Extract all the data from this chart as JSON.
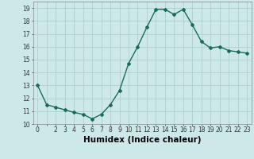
{
  "x": [
    0,
    1,
    2,
    3,
    4,
    5,
    6,
    7,
    8,
    9,
    10,
    11,
    12,
    13,
    14,
    15,
    16,
    17,
    18,
    19,
    20,
    21,
    22,
    23
  ],
  "y": [
    13.0,
    11.5,
    11.3,
    11.1,
    10.9,
    10.75,
    10.4,
    10.75,
    11.5,
    12.6,
    14.7,
    16.0,
    17.5,
    18.9,
    18.9,
    18.5,
    18.9,
    17.7,
    16.4,
    15.9,
    16.0,
    15.7,
    15.6,
    15.5
  ],
  "line_color": "#1a6b5a",
  "marker": "D",
  "marker_size": 2.0,
  "bg_color": "#cde8e8",
  "grid_color": "#aed0d0",
  "xlabel": "Humidex (Indice chaleur)",
  "xlabel_fontsize": 7.5,
  "xlim": [
    -0.5,
    23.5
  ],
  "ylim": [
    10,
    19.5
  ],
  "yticks": [
    10,
    11,
    12,
    13,
    14,
    15,
    16,
    17,
    18,
    19
  ],
  "xtick_labels": [
    "0",
    "",
    "2",
    "3",
    "4",
    "5",
    "6",
    "7",
    "8",
    "9",
    "10",
    "11",
    "12",
    "13",
    "14",
    "15",
    "16",
    "17",
    "18",
    "19",
    "20",
    "21",
    "22",
    "23"
  ],
  "xticks": [
    0,
    1,
    2,
    3,
    4,
    5,
    6,
    7,
    8,
    9,
    10,
    11,
    12,
    13,
    14,
    15,
    16,
    17,
    18,
    19,
    20,
    21,
    22,
    23
  ],
  "tick_fontsize": 5.5,
  "line_width": 1.0
}
